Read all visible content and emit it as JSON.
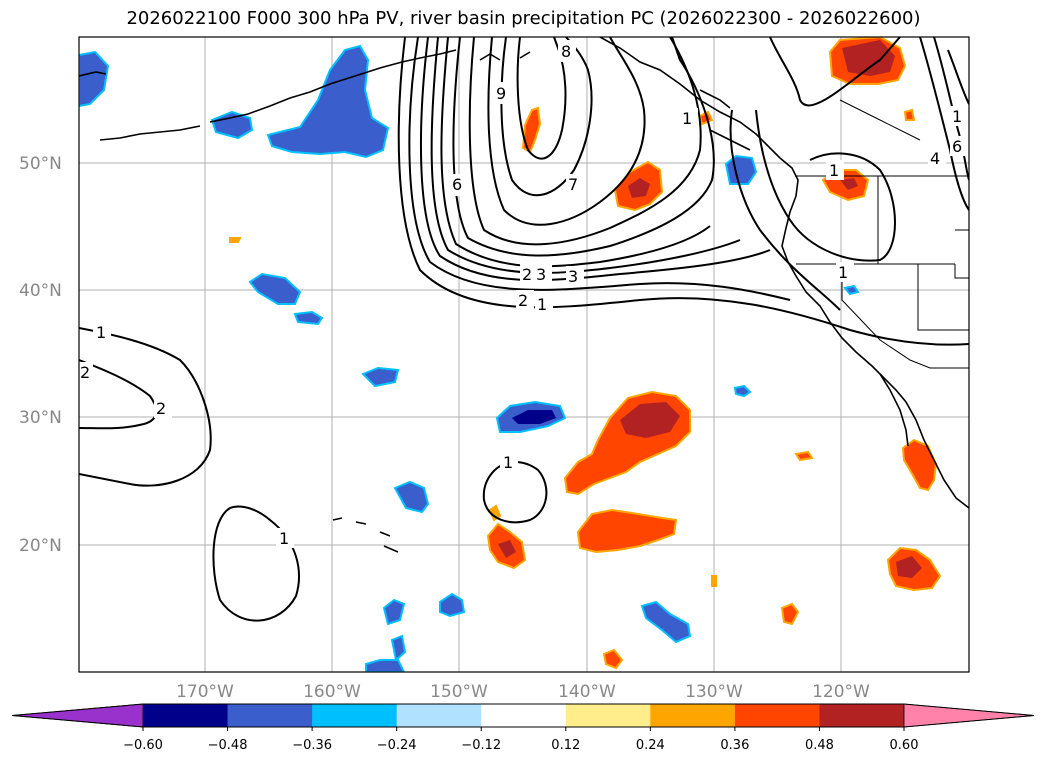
{
  "title": "2026022100 F000 300 hPa PV, river basin precipitation PC (2026022300 - 2026022600)",
  "lat_labels": [
    "50°N",
    "40°N",
    "30°N",
    "20°N"
  ],
  "lon_labels": [
    "170°W",
    "160°W",
    "150°W",
    "140°W",
    "130°W",
    "120°W"
  ],
  "colorbar": {
    "ticks": [
      "−0.60",
      "−0.48",
      "−0.36",
      "−0.24",
      "−0.12",
      "0.12",
      "0.24",
      "0.36",
      "0.48",
      "0.60"
    ],
    "colors": [
      "#9932CC",
      "#00008B",
      "#3A5FCD",
      "#00BFFF",
      "#B0E2FF",
      "#FFFFFF",
      "#FFEC8B",
      "#FFA500",
      "#FF4500",
      "#B22222",
      "#FF82AB"
    ]
  },
  "pv_contour_labels": [
    "1",
    "2",
    "8",
    "9",
    "6",
    "7",
    "1",
    "4",
    "6",
    "3",
    "2",
    "2",
    "3",
    "1",
    "1",
    "1",
    "2",
    "1",
    "1",
    "1"
  ],
  "colors": {
    "neg_dark": "#00008B",
    "neg_mid": "#3A5FCD",
    "neg_light": "#00BFFF",
    "neg_pale": "#B0E2FF",
    "pos_pale": "#FFEC8B",
    "pos_light": "#FFA500",
    "pos_mid": "#FF4500",
    "pos_dark": "#B22222"
  }
}
